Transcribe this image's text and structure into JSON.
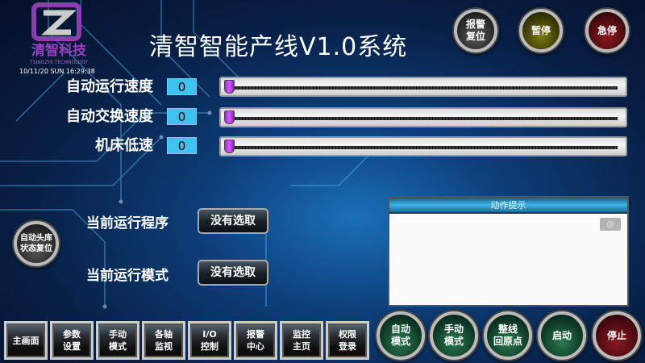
{
  "logo": {
    "text": "清智科技",
    "subtext": "TSINGZHI TECHNOLOGY"
  },
  "datetime": "10/11/20 SUN 16:29:38",
  "title": "清智智能产线V1.0系统",
  "top_buttons": [
    {
      "label": "报警\n复位",
      "color": "gray"
    },
    {
      "label": "暂停",
      "color": "yellow"
    },
    {
      "label": "急停",
      "color": "red"
    }
  ],
  "speeds": [
    {
      "label": "自动运行速度",
      "value": "0",
      "slider_value": 0
    },
    {
      "label": "自动交换速度",
      "value": "0",
      "slider_value": 0
    },
    {
      "label": "机床低速",
      "value": "0",
      "slider_value": 0
    }
  ],
  "status": {
    "program_label": "当前运行程序",
    "program_value": "没有选取",
    "mode_label": "当前运行模式",
    "mode_value": "没有选取"
  },
  "reset_button": "自动头库\n状态复位",
  "action_panel": {
    "title": "动作提示",
    "button_icon": "settings-icon"
  },
  "nav_buttons": [
    "主画面",
    "参数\n设置",
    "手动\n模式",
    "各轴\n监视",
    "I/O\n控制",
    "报警\n中心",
    "监控\n主页",
    "权限\n登录"
  ],
  "mode_buttons": [
    {
      "label": "自动\n模式",
      "color": "green"
    },
    {
      "label": "手动\n模式",
      "color": "green"
    },
    {
      "label": "整线\n回原点",
      "color": "green"
    },
    {
      "label": "启动",
      "color": "green"
    },
    {
      "label": "停止",
      "color": "red"
    }
  ]
}
